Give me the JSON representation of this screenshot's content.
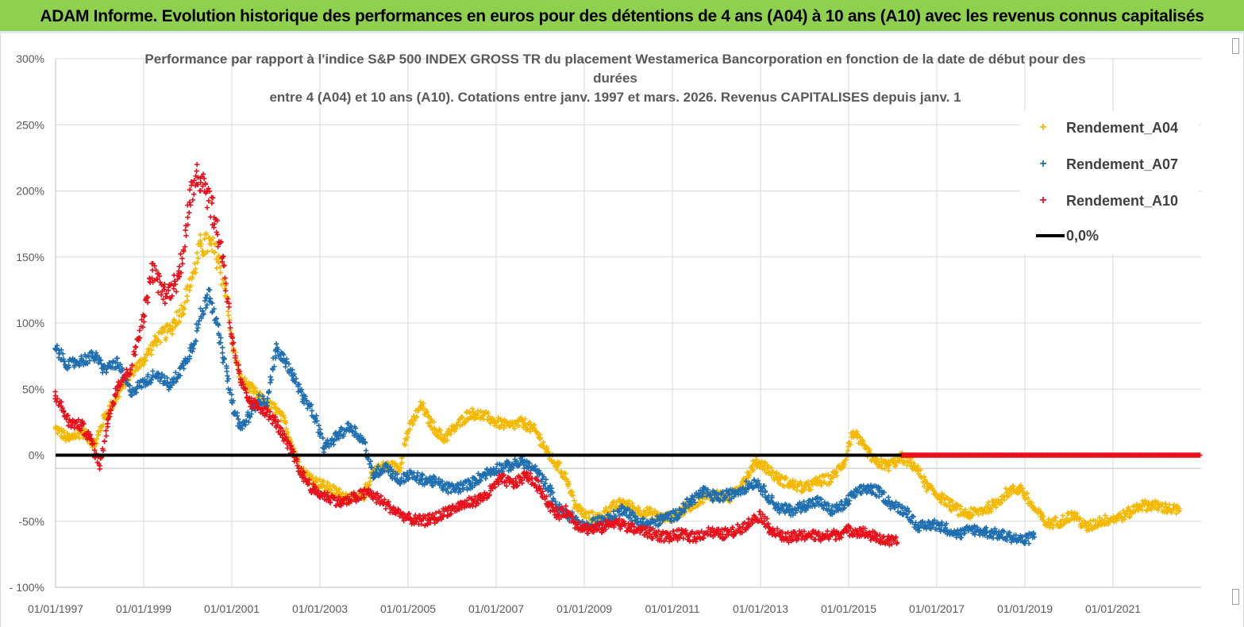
{
  "banner": {
    "title": "ADAM Informe. Evolution historique des performances en euros pour des détentions de 4 ans (A04) à 10 ans (A10) avec les revenus connus capitalisés",
    "background": "#8fd14f"
  },
  "chart_data": {
    "type": "scatter",
    "title_lines": [
      "Performance par rapport à l'indice S&P 500 INDEX GROSS TR  du placement Westamerica Bancorporation en fonction de la date de début pour des",
      "durées",
      "entre 4 (A04) et 10 ans (A10).  Cotations entre janv. 1997 et mars. 2026. Revenus CAPITALISES depuis janv. 1"
    ],
    "xlabel": "",
    "ylabel": "",
    "x_range": [
      1997.0,
      2023.0
    ],
    "ylim": [
      -100,
      300
    ],
    "y_ticks": [
      300,
      250,
      200,
      150,
      100,
      50,
      0,
      -50,
      -100
    ],
    "y_tick_labels": [
      "300%",
      "250%",
      "200%",
      "150%",
      "100%",
      "50%",
      "0%",
      "-50%",
      "- 100%"
    ],
    "x_tick_values": [
      1997,
      1999,
      2001,
      2003,
      2005,
      2007,
      2009,
      2011,
      2013,
      2015,
      2017,
      2019,
      2021
    ],
    "x_tick_labels": [
      "01/01/1997",
      "01/01/1999",
      "01/01/2001",
      "01/01/2003",
      "01/01/2005",
      "01/01/2007",
      "01/01/2009",
      "01/01/2011",
      "01/01/2013",
      "01/01/2015",
      "01/01/2017",
      "01/01/2019",
      "01/01/2021"
    ],
    "grid": true,
    "legend_position": "top-right",
    "series": [
      {
        "name": "Rendement_A04",
        "color": "#f5b800",
        "marker": "+",
        "points": [
          [
            1997.0,
            20
          ],
          [
            1997.3,
            12
          ],
          [
            1997.6,
            18
          ],
          [
            1997.9,
            8
          ],
          [
            1998.1,
            28
          ],
          [
            1998.4,
            45
          ],
          [
            1998.7,
            62
          ],
          [
            1999.0,
            72
          ],
          [
            1999.3,
            88
          ],
          [
            1999.6,
            95
          ],
          [
            1999.9,
            112
          ],
          [
            2000.1,
            135
          ],
          [
            2000.3,
            158
          ],
          [
            2000.5,
            160
          ],
          [
            2000.7,
            148
          ],
          [
            2000.9,
            118
          ],
          [
            2001.0,
            85
          ],
          [
            2001.2,
            58
          ],
          [
            2001.5,
            48
          ],
          [
            2001.8,
            38
          ],
          [
            2002.0,
            35
          ],
          [
            2002.2,
            25
          ],
          [
            2002.4,
            5
          ],
          [
            2002.6,
            -12
          ],
          [
            2002.9,
            -20
          ],
          [
            2003.2,
            -25
          ],
          [
            2003.5,
            -30
          ],
          [
            2003.8,
            -34
          ],
          [
            2004.0,
            -30
          ],
          [
            2004.2,
            -12
          ],
          [
            2004.5,
            -8
          ],
          [
            2004.8,
            -10
          ],
          [
            2005.0,
            18
          ],
          [
            2005.3,
            38
          ],
          [
            2005.5,
            25
          ],
          [
            2005.8,
            12
          ],
          [
            2006.1,
            22
          ],
          [
            2006.4,
            32
          ],
          [
            2006.7,
            30
          ],
          [
            2007.0,
            25
          ],
          [
            2007.3,
            22
          ],
          [
            2007.6,
            25
          ],
          [
            2007.9,
            18
          ],
          [
            2008.2,
            0
          ],
          [
            2008.4,
            -8
          ],
          [
            2008.6,
            -18
          ],
          [
            2008.8,
            -38
          ],
          [
            2009.0,
            -45
          ],
          [
            2009.3,
            -48
          ],
          [
            2009.6,
            -40
          ],
          [
            2009.9,
            -36
          ],
          [
            2010.2,
            -42
          ],
          [
            2010.5,
            -44
          ],
          [
            2010.8,
            -48
          ],
          [
            2011.1,
            -45
          ],
          [
            2011.4,
            -38
          ],
          [
            2011.7,
            -32
          ],
          [
            2012.0,
            -30
          ],
          [
            2012.3,
            -32
          ],
          [
            2012.6,
            -20
          ],
          [
            2012.9,
            -5
          ],
          [
            2013.1,
            -8
          ],
          [
            2013.4,
            -18
          ],
          [
            2013.7,
            -22
          ],
          [
            2014.0,
            -25
          ],
          [
            2014.3,
            -20
          ],
          [
            2014.6,
            -18
          ],
          [
            2014.9,
            -5
          ],
          [
            2015.1,
            18
          ],
          [
            2015.3,
            8
          ],
          [
            2015.6,
            -5
          ],
          [
            2015.9,
            -8
          ],
          [
            2016.2,
            -2
          ],
          [
            2016.5,
            -8
          ],
          [
            2016.8,
            -25
          ],
          [
            2017.1,
            -32
          ],
          [
            2017.4,
            -40
          ],
          [
            2017.7,
            -45
          ],
          [
            2018.0,
            -42
          ],
          [
            2018.3,
            -38
          ],
          [
            2018.6,
            -28
          ],
          [
            2018.9,
            -25
          ],
          [
            2019.2,
            -40
          ],
          [
            2019.5,
            -52
          ],
          [
            2019.8,
            -50
          ],
          [
            2020.1,
            -45
          ],
          [
            2020.4,
            -55
          ],
          [
            2020.7,
            -50
          ],
          [
            2021.0,
            -48
          ],
          [
            2021.3,
            -45
          ],
          [
            2021.6,
            -38
          ],
          [
            2021.9,
            -38
          ],
          [
            2022.2,
            -40
          ],
          [
            2022.5,
            -42
          ]
        ]
      },
      {
        "name": "Rendement_A07",
        "color": "#1f6fb0",
        "marker": "+",
        "points": [
          [
            1997.0,
            80
          ],
          [
            1997.3,
            68
          ],
          [
            1997.6,
            72
          ],
          [
            1997.9,
            75
          ],
          [
            1998.1,
            65
          ],
          [
            1998.4,
            70
          ],
          [
            1998.7,
            48
          ],
          [
            1999.0,
            55
          ],
          [
            1999.3,
            62
          ],
          [
            1999.6,
            52
          ],
          [
            1999.9,
            68
          ],
          [
            2000.1,
            82
          ],
          [
            2000.3,
            105
          ],
          [
            2000.5,
            125
          ],
          [
            2000.7,
            92
          ],
          [
            2000.9,
            60
          ],
          [
            2001.0,
            40
          ],
          [
            2001.2,
            20
          ],
          [
            2001.4,
            30
          ],
          [
            2001.6,
            42
          ],
          [
            2001.8,
            40
          ],
          [
            2002.0,
            80
          ],
          [
            2002.2,
            72
          ],
          [
            2002.4,
            60
          ],
          [
            2002.6,
            45
          ],
          [
            2002.9,
            28
          ],
          [
            2003.1,
            5
          ],
          [
            2003.4,
            15
          ],
          [
            2003.7,
            22
          ],
          [
            2004.0,
            10
          ],
          [
            2004.2,
            -15
          ],
          [
            2004.5,
            -8
          ],
          [
            2004.8,
            -20
          ],
          [
            2005.0,
            -15
          ],
          [
            2005.3,
            -18
          ],
          [
            2005.6,
            -20
          ],
          [
            2005.9,
            -25
          ],
          [
            2006.1,
            -25
          ],
          [
            2006.4,
            -22
          ],
          [
            2006.7,
            -15
          ],
          [
            2007.0,
            -10
          ],
          [
            2007.3,
            -8
          ],
          [
            2007.6,
            -5
          ],
          [
            2007.9,
            -12
          ],
          [
            2008.2,
            -25
          ],
          [
            2008.4,
            -40
          ],
          [
            2008.6,
            -45
          ],
          [
            2008.8,
            -48
          ],
          [
            2009.0,
            -55
          ],
          [
            2009.3,
            -50
          ],
          [
            2009.6,
            -48
          ],
          [
            2009.9,
            -40
          ],
          [
            2010.2,
            -50
          ],
          [
            2010.5,
            -52
          ],
          [
            2010.8,
            -48
          ],
          [
            2011.1,
            -45
          ],
          [
            2011.4,
            -35
          ],
          [
            2011.7,
            -28
          ],
          [
            2012.0,
            -32
          ],
          [
            2012.3,
            -30
          ],
          [
            2012.6,
            -25
          ],
          [
            2012.9,
            -20
          ],
          [
            2013.1,
            -28
          ],
          [
            2013.4,
            -40
          ],
          [
            2013.7,
            -42
          ],
          [
            2014.0,
            -38
          ],
          [
            2014.3,
            -35
          ],
          [
            2014.6,
            -42
          ],
          [
            2014.9,
            -38
          ],
          [
            2015.1,
            -30
          ],
          [
            2015.4,
            -25
          ],
          [
            2015.7,
            -28
          ],
          [
            2016.0,
            -38
          ],
          [
            2016.3,
            -42
          ],
          [
            2016.6,
            -55
          ],
          [
            2016.9,
            -52
          ],
          [
            2017.2,
            -55
          ],
          [
            2017.5,
            -60
          ],
          [
            2017.8,
            -56
          ],
          [
            2018.1,
            -58
          ],
          [
            2018.4,
            -60
          ],
          [
            2018.7,
            -62
          ],
          [
            2019.0,
            -65
          ],
          [
            2019.2,
            -60
          ]
        ]
      },
      {
        "name": "Rendement_A10",
        "color": "#e8101b",
        "marker": "+",
        "points": [
          [
            1997.0,
            45
          ],
          [
            1997.3,
            25
          ],
          [
            1997.6,
            22
          ],
          [
            1997.8,
            12
          ],
          [
            1998.0,
            -8
          ],
          [
            1998.2,
            28
          ],
          [
            1998.4,
            52
          ],
          [
            1998.7,
            65
          ],
          [
            1999.0,
            105
          ],
          [
            1999.2,
            140
          ],
          [
            1999.5,
            120
          ],
          [
            1999.8,
            135
          ],
          [
            2000.0,
            180
          ],
          [
            2000.2,
            215
          ],
          [
            2000.4,
            205
          ],
          [
            2000.6,
            180
          ],
          [
            2000.8,
            150
          ],
          [
            2001.0,
            90
          ],
          [
            2001.2,
            55
          ],
          [
            2001.4,
            40
          ],
          [
            2001.7,
            35
          ],
          [
            2002.0,
            25
          ],
          [
            2002.2,
            12
          ],
          [
            2002.4,
            0
          ],
          [
            2002.6,
            -15
          ],
          [
            2002.9,
            -28
          ],
          [
            2003.2,
            -32
          ],
          [
            2003.5,
            -36
          ],
          [
            2003.8,
            -32
          ],
          [
            2004.1,
            -28
          ],
          [
            2004.4,
            -35
          ],
          [
            2004.7,
            -42
          ],
          [
            2005.0,
            -48
          ],
          [
            2005.3,
            -50
          ],
          [
            2005.6,
            -48
          ],
          [
            2005.9,
            -42
          ],
          [
            2006.2,
            -38
          ],
          [
            2006.5,
            -35
          ],
          [
            2006.8,
            -30
          ],
          [
            2007.1,
            -18
          ],
          [
            2007.4,
            -22
          ],
          [
            2007.7,
            -15
          ],
          [
            2008.0,
            -25
          ],
          [
            2008.2,
            -38
          ],
          [
            2008.4,
            -45
          ],
          [
            2008.6,
            -42
          ],
          [
            2008.8,
            -52
          ],
          [
            2009.1,
            -56
          ],
          [
            2009.4,
            -55
          ],
          [
            2009.7,
            -50
          ],
          [
            2010.0,
            -55
          ],
          [
            2010.3,
            -57
          ],
          [
            2010.6,
            -60
          ],
          [
            2010.9,
            -62
          ],
          [
            2011.2,
            -60
          ],
          [
            2011.5,
            -62
          ],
          [
            2011.8,
            -58
          ],
          [
            2012.1,
            -60
          ],
          [
            2012.4,
            -58
          ],
          [
            2012.7,
            -52
          ],
          [
            2013.0,
            -45
          ],
          [
            2013.2,
            -55
          ],
          [
            2013.5,
            -62
          ],
          [
            2013.8,
            -62
          ],
          [
            2014.1,
            -60
          ],
          [
            2014.4,
            -62
          ],
          [
            2014.7,
            -60
          ],
          [
            2015.0,
            -57
          ],
          [
            2015.3,
            -58
          ],
          [
            2015.6,
            -62
          ],
          [
            2015.9,
            -65
          ],
          [
            2016.1,
            -66
          ]
        ]
      }
    ],
    "zero_line": {
      "name": "0,0%",
      "value": 0,
      "color": "#000000"
    },
    "flat_segment": {
      "series": "Rendement_A10",
      "from": 2016.2,
      "to": 2023.0,
      "value": 0
    },
    "legend_entries": [
      "Rendement_A04",
      "Rendement_A07",
      "Rendement_A10",
      "0,0%"
    ]
  }
}
